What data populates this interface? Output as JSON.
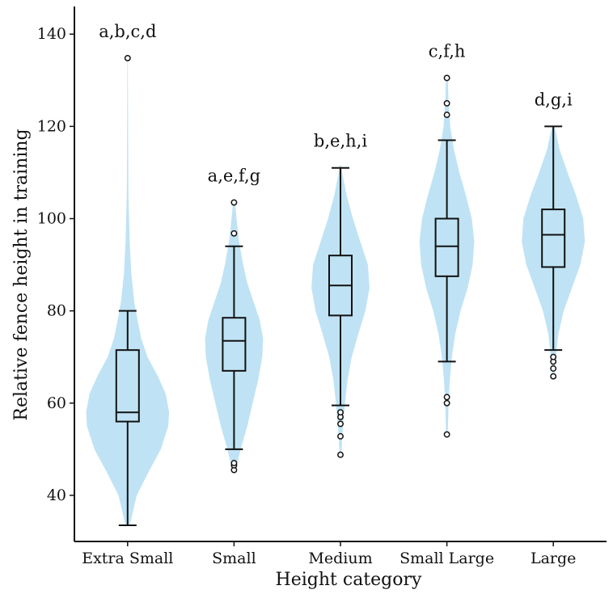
{
  "chart_data": {
    "type": "violin",
    "title": "",
    "xlabel": "Height category",
    "ylabel": "Relative fence height in training",
    "ylim": [
      30,
      146
    ],
    "yticks": [
      40,
      60,
      80,
      100,
      120,
      140
    ],
    "grid": false,
    "colors": {
      "violin": "#bfe3f4",
      "box": "#111111",
      "outlier": "#111111"
    },
    "categories": [
      {
        "name": "Extra Small",
        "significance": "a,b,c,d",
        "box": {
          "whisker_low": 33.5,
          "q1": 56,
          "median": 58,
          "q3": 71.5,
          "whisker_high": 80
        },
        "outliers": [
          134.8
        ],
        "violin": [
          [
            33.5,
            0.05
          ],
          [
            40,
            0.22
          ],
          [
            45,
            0.5
          ],
          [
            50,
            0.8
          ],
          [
            55,
            0.98
          ],
          [
            58,
            1.0
          ],
          [
            62,
            0.92
          ],
          [
            66,
            0.72
          ],
          [
            70,
            0.48
          ],
          [
            74,
            0.33
          ],
          [
            78,
            0.24
          ],
          [
            82,
            0.16
          ],
          [
            88,
            0.09
          ],
          [
            95,
            0.05
          ],
          [
            105,
            0.02
          ],
          [
            120,
            0.012
          ],
          [
            135,
            0.005
          ]
        ]
      },
      {
        "name": "Small",
        "significance": "a,e,f,g",
        "box": {
          "whisker_low": 50,
          "q1": 67,
          "median": 73.5,
          "q3": 78.5,
          "whisker_high": 94
        },
        "outliers": [
          45.5,
          46.5,
          47,
          96.8,
          103.5
        ],
        "violin": [
          [
            45,
            0.03
          ],
          [
            50,
            0.16
          ],
          [
            55,
            0.32
          ],
          [
            60,
            0.45
          ],
          [
            65,
            0.58
          ],
          [
            70,
            0.68
          ],
          [
            74,
            0.7
          ],
          [
            78,
            0.62
          ],
          [
            82,
            0.47
          ],
          [
            86,
            0.32
          ],
          [
            90,
            0.22
          ],
          [
            95,
            0.12
          ],
          [
            100,
            0.06
          ],
          [
            104,
            0.02
          ]
        ]
      },
      {
        "name": "Medium",
        "significance": "b,e,h,i",
        "box": {
          "whisker_low": 59.5,
          "q1": 79,
          "median": 85.5,
          "q3": 92,
          "whisker_high": 111
        },
        "outliers": [
          48.8,
          52.8,
          55.5,
          57,
          58
        ],
        "violin": [
          [
            48.5,
            0.02
          ],
          [
            55,
            0.06
          ],
          [
            60,
            0.11
          ],
          [
            65,
            0.17
          ],
          [
            70,
            0.27
          ],
          [
            75,
            0.43
          ],
          [
            80,
            0.6
          ],
          [
            85,
            0.7
          ],
          [
            90,
            0.66
          ],
          [
            95,
            0.48
          ],
          [
            100,
            0.3
          ],
          [
            105,
            0.15
          ],
          [
            110,
            0.04
          ],
          [
            111.5,
            0.02
          ]
        ]
      },
      {
        "name": "Small Large",
        "significance": "c,f,h",
        "box": {
          "whisker_low": 69,
          "q1": 87.5,
          "median": 94,
          "q3": 100,
          "whisker_high": 117
        },
        "outliers": [
          53.2,
          60,
          61.3,
          122.5,
          125,
          130.5
        ],
        "violin": [
          [
            53,
            0.02
          ],
          [
            60,
            0.04
          ],
          [
            65,
            0.07
          ],
          [
            70,
            0.12
          ],
          [
            75,
            0.2
          ],
          [
            80,
            0.33
          ],
          [
            85,
            0.5
          ],
          [
            90,
            0.62
          ],
          [
            95,
            0.66
          ],
          [
            100,
            0.6
          ],
          [
            105,
            0.46
          ],
          [
            110,
            0.3
          ],
          [
            115,
            0.17
          ],
          [
            120,
            0.08
          ],
          [
            125,
            0.04
          ],
          [
            131,
            0.02
          ]
        ]
      },
      {
        "name": "Large",
        "significance": "d,g,i",
        "box": {
          "whisker_low": 71.5,
          "q1": 89.5,
          "median": 96.5,
          "q3": 102,
          "whisker_high": 120
        },
        "outliers": [
          65.8,
          67.5,
          69,
          70
        ],
        "violin": [
          [
            65.5,
            0.02
          ],
          [
            70,
            0.06
          ],
          [
            75,
            0.12
          ],
          [
            80,
            0.25
          ],
          [
            85,
            0.45
          ],
          [
            90,
            0.65
          ],
          [
            95,
            0.76
          ],
          [
            100,
            0.72
          ],
          [
            105,
            0.55
          ],
          [
            110,
            0.34
          ],
          [
            115,
            0.15
          ],
          [
            120,
            0.03
          ]
        ]
      }
    ]
  }
}
